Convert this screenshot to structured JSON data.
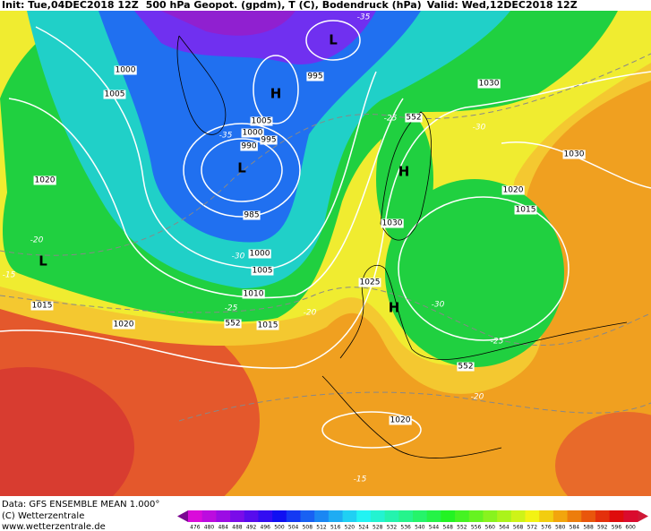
{
  "header": {
    "init": "Init: Tue,04DEC2018 12Z",
    "title": "500 hPa Geopot. (gpdm), T (C), Bodendruck (hPa)",
    "valid": "Valid: Wed,12DEC2018 12Z"
  },
  "isobar_labels": [
    1000,
    1005,
    995,
    1005,
    1000,
    995,
    990,
    1030,
    1030,
    1020,
    1015,
    1020,
    985,
    1030,
    1000,
    1005,
    1010,
    1015,
    1015,
    1020,
    1025,
    1020
  ],
  "temperature_labels": [
    -35,
    -35,
    -25,
    -30,
    -20,
    -15,
    -30,
    -25,
    -20,
    -30,
    -25,
    -20,
    -15
  ],
  "geopotential_labels": [
    552,
    552,
    552
  ],
  "pressure_centers": [
    "L",
    "H",
    "L",
    "H",
    "L",
    "H"
  ],
  "footer": {
    "data_source": "Data: GFS ENSEMBLE MEAN 1.000°",
    "copyright": "(C) Wetterzentrale",
    "website": "www.wetterzentrale.de"
  },
  "colorbar_labels": [
    476,
    480,
    484,
    488,
    492,
    496,
    500,
    504,
    508,
    512,
    516,
    520,
    524,
    528,
    532,
    536,
    540,
    544,
    548,
    552,
    556,
    560,
    564,
    568,
    572,
    576,
    580,
    584,
    588,
    592,
    596,
    600
  ]
}
